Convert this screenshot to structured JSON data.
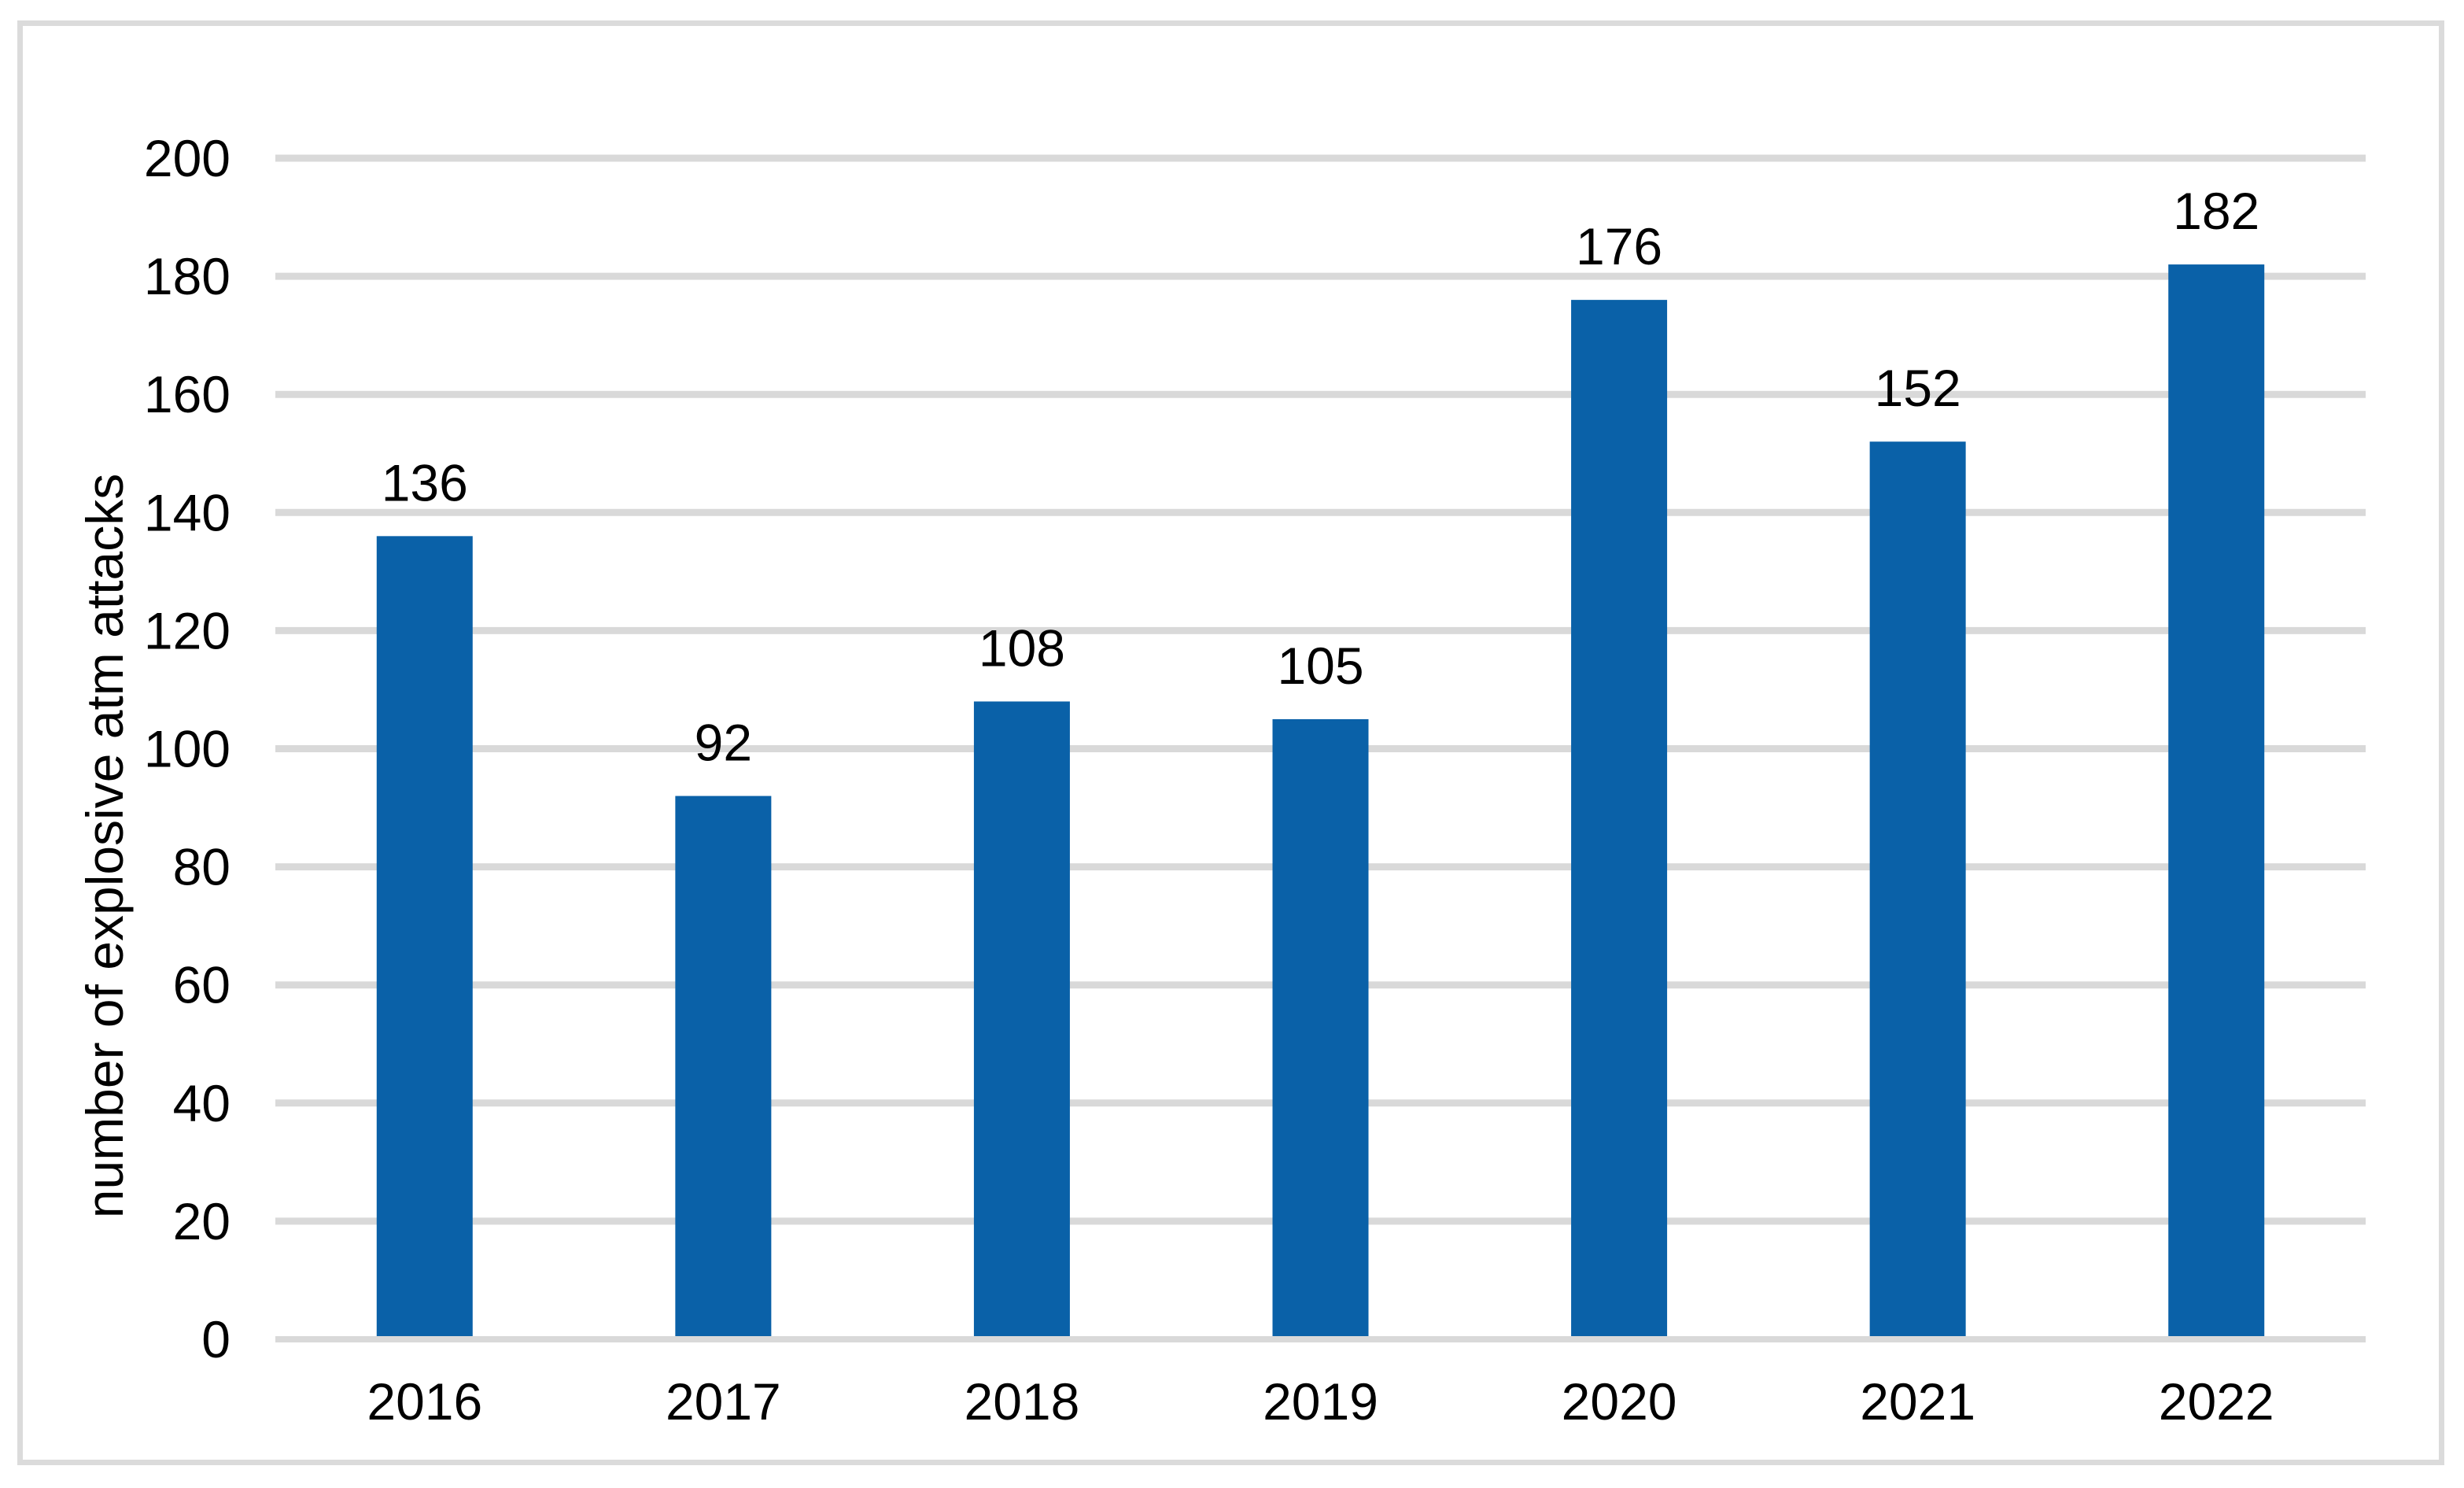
{
  "chart_data": {
    "type": "bar",
    "title": "",
    "xlabel": "",
    "ylabel": "number of explosive atm attacks",
    "categories": [
      "2016",
      "2017",
      "2018",
      "2019",
      "2020",
      "2021",
      "2022"
    ],
    "values": [
      136,
      92,
      108,
      105,
      176,
      152,
      182
    ],
    "data_labels_shown": true,
    "ylim": [
      0,
      200
    ],
    "ytick_step": 20,
    "ytick_labels": [
      "0",
      "20",
      "40",
      "60",
      "80",
      "100",
      "120",
      "140",
      "160",
      "180",
      "200"
    ],
    "grid": "horizontal",
    "legend": "none",
    "colors": {
      "bar": "#0A61A8",
      "gridline": "#D9D9D9",
      "axis_line": "#D9D9D9",
      "frame_border": "#DBDBDB",
      "text": "#000000",
      "background": "#FFFFFF"
    }
  }
}
